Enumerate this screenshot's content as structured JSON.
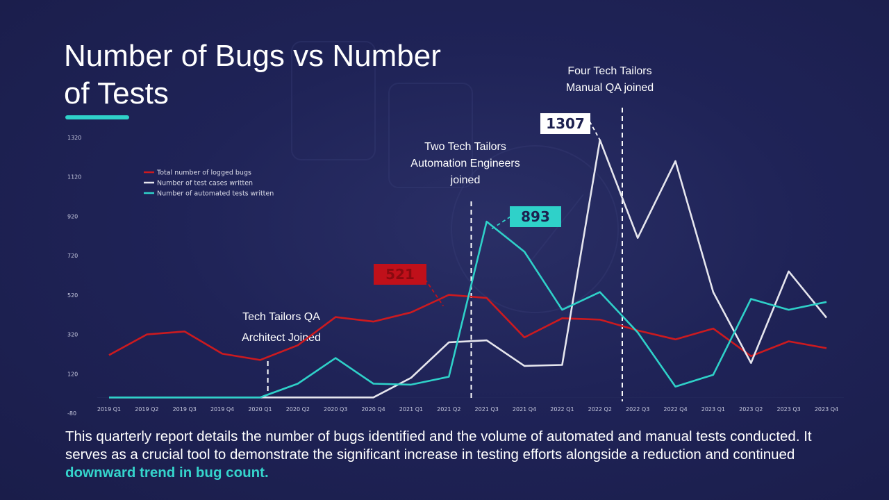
{
  "slide": {
    "title": "Number of Bugs vs Number of Tests",
    "caption": "This quarterly report details the number of bugs identified and the volume of automated and manual tests conducted.  It serves as a crucial tool to demonstrate the significant increase in testing efforts alongside a reduction and continued ",
    "caption_highlight": "downward trend in bug count.",
    "accent_color": "#2fd1c9"
  },
  "chart_data": {
    "type": "line",
    "categories": [
      "2019 Q1",
      "2019 Q2",
      "2019 Q3",
      "2019 Q4",
      "2020 Q1",
      "2020 Q2",
      "2020 Q3",
      "2020 Q4",
      "2021 Q1",
      "2021 Q2",
      "2021 Q3",
      "2021 Q4",
      "2022 Q1",
      "2022 Q2",
      "2022 Q3",
      "2022 Q4",
      "2023 Q1",
      "2023 Q2",
      "2023 Q3",
      "2023 Q4"
    ],
    "yticks": [
      1320,
      1120,
      920,
      720,
      520,
      320,
      120,
      -80
    ],
    "ylim": [
      -80,
      1320
    ],
    "series": [
      {
        "name": "Total number of logged bugs",
        "color": "#cc1a1f",
        "values": [
          215,
          320,
          335,
          222,
          190,
          265,
          408,
          385,
          432,
          521,
          505,
          305,
          402,
          395,
          340,
          295,
          350,
          210,
          285,
          250
        ]
      },
      {
        "name": "Number of test cases written",
        "color": "#e6e6ee",
        "values": [
          0,
          0,
          0,
          0,
          0,
          0,
          0,
          0,
          100,
          280,
          290,
          160,
          165,
          1307,
          810,
          1200,
          535,
          175,
          640,
          405
        ]
      },
      {
        "name": "Number of automated tests written",
        "color": "#2fd1c9",
        "values": [
          0,
          0,
          0,
          0,
          0,
          70,
          200,
          70,
          65,
          105,
          893,
          740,
          445,
          535,
          330,
          55,
          115,
          500,
          445,
          485
        ]
      }
    ],
    "callouts": [
      {
        "label": "521",
        "series": 0,
        "index": 9,
        "bg": "#c0101a",
        "fg": "#8a0a10"
      },
      {
        "label": "893",
        "series": 2,
        "index": 10,
        "bg": "#2fd1c9",
        "fg": "#1d2150"
      },
      {
        "label": "1307",
        "series": 1,
        "index": 13,
        "bg": "#ffffff",
        "fg": "#1d2150"
      }
    ],
    "events": [
      {
        "label_lines": [
          "Tech Tailors QA",
          "Architect Joined"
        ],
        "after_index": 4.5
      },
      {
        "label_lines": [
          "Two Tech Tailors",
          "Automation Engineers",
          "joined"
        ],
        "after_index": 9.5
      },
      {
        "label_lines": [
          "Four Tech Tailors",
          "Manual QA joined"
        ],
        "after_index": 13.5
      }
    ],
    "legend_position": "top-left"
  }
}
